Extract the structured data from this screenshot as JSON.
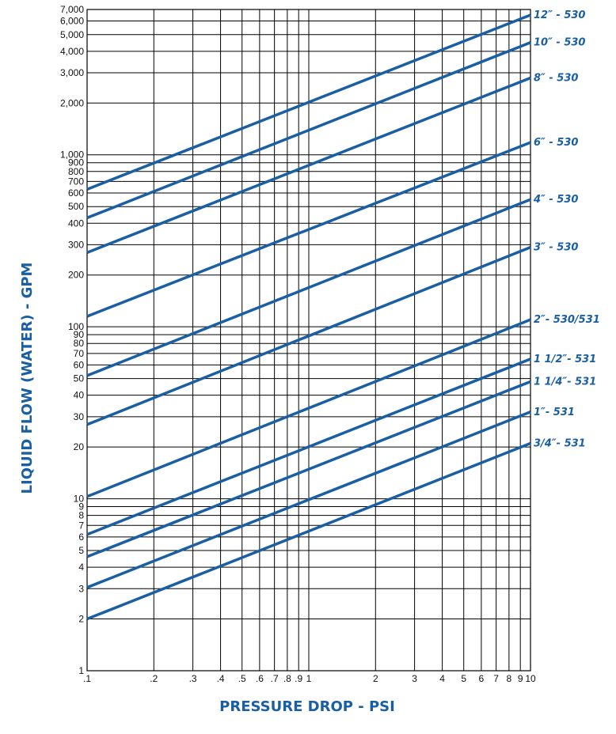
{
  "colors": {
    "series": "#1a5fa3",
    "grid": "#000000",
    "axis_title": "#1a5fa3"
  },
  "chart_data": {
    "type": "line",
    "xscale": "log",
    "yscale": "log",
    "xlim": [
      0.1,
      10
    ],
    "ylim": [
      1,
      7000
    ],
    "grid": true,
    "xlabel": "PRESSURE DROP - PSI",
    "ylabel": "LIQUID FLOW (WATER) - GPM",
    "x_ticks": [
      {
        "value": 0.1,
        "label": ".1"
      },
      {
        "value": 0.2,
        "label": ".2"
      },
      {
        "value": 0.3,
        "label": ".3"
      },
      {
        "value": 0.4,
        "label": ".4"
      },
      {
        "value": 0.5,
        "label": ".5"
      },
      {
        "value": 0.6,
        "label": ".6"
      },
      {
        "value": 0.7,
        "label": ".7"
      },
      {
        "value": 0.8,
        "label": ".8"
      },
      {
        "value": 0.9,
        "label": ".9"
      },
      {
        "value": 1,
        "label": "1"
      },
      {
        "value": 2,
        "label": "2"
      },
      {
        "value": 3,
        "label": "3"
      },
      {
        "value": 4,
        "label": "4"
      },
      {
        "value": 5,
        "label": "5"
      },
      {
        "value": 6,
        "label": "6"
      },
      {
        "value": 7,
        "label": "7"
      },
      {
        "value": 8,
        "label": "8"
      },
      {
        "value": 9,
        "label": "9"
      },
      {
        "value": 10,
        "label": "10"
      }
    ],
    "y_ticks": [
      {
        "value": 1,
        "label": "1"
      },
      {
        "value": 2,
        "label": "2"
      },
      {
        "value": 3,
        "label": "3"
      },
      {
        "value": 4,
        "label": "4"
      },
      {
        "value": 5,
        "label": "5"
      },
      {
        "value": 6,
        "label": "6"
      },
      {
        "value": 7,
        "label": "7"
      },
      {
        "value": 8,
        "label": "8"
      },
      {
        "value": 9,
        "label": "9"
      },
      {
        "value": 10,
        "label": "10"
      },
      {
        "value": 20,
        "label": "20"
      },
      {
        "value": 30,
        "label": "30"
      },
      {
        "value": 40,
        "label": "40"
      },
      {
        "value": 50,
        "label": "50"
      },
      {
        "value": 60,
        "label": "60"
      },
      {
        "value": 70,
        "label": "70"
      },
      {
        "value": 80,
        "label": "80"
      },
      {
        "value": 90,
        "label": "90"
      },
      {
        "value": 100,
        "label": "100"
      },
      {
        "value": 200,
        "label": "200"
      },
      {
        "value": 300,
        "label": "300"
      },
      {
        "value": 400,
        "label": "400"
      },
      {
        "value": 500,
        "label": "500"
      },
      {
        "value": 600,
        "label": "600"
      },
      {
        "value": 700,
        "label": "700"
      },
      {
        "value": 800,
        "label": "800"
      },
      {
        "value": 900,
        "label": "900"
      },
      {
        "value": 1000,
        "label": "1,000"
      },
      {
        "value": 2000,
        "label": "2,000"
      },
      {
        "value": 3000,
        "label": "3,000"
      },
      {
        "value": 4000,
        "label": "4,000"
      },
      {
        "value": 5000,
        "label": "5,000"
      },
      {
        "value": 6000,
        "label": "6,000"
      },
      {
        "value": 7000,
        "label": "7,000"
      }
    ],
    "series": [
      {
        "name": "12″ - 530",
        "x": [
          0.1,
          10
        ],
        "y": [
          630,
          6500
        ]
      },
      {
        "name": "10″ - 530",
        "x": [
          0.1,
          10
        ],
        "y": [
          430,
          4500
        ]
      },
      {
        "name": "8″ - 530",
        "x": [
          0.1,
          10
        ],
        "y": [
          270,
          2800
        ]
      },
      {
        "name": "6″ - 530",
        "x": [
          0.1,
          10
        ],
        "y": [
          115,
          1180
        ]
      },
      {
        "name": "4″ - 530",
        "x": [
          0.1,
          10
        ],
        "y": [
          52,
          550
        ]
      },
      {
        "name": "3″ - 530",
        "x": [
          0.1,
          10
        ],
        "y": [
          27,
          290
        ]
      },
      {
        "name": "2″- 530/531",
        "x": [
          0.1,
          10
        ],
        "y": [
          10.3,
          110
        ]
      },
      {
        "name": "1 1/2″- 531",
        "x": [
          0.1,
          10
        ],
        "y": [
          6.2,
          65
        ]
      },
      {
        "name": "1 1/4″- 531",
        "x": [
          0.1,
          10
        ],
        "y": [
          4.6,
          48
        ]
      },
      {
        "name": "1″- 531",
        "x": [
          0.1,
          10
        ],
        "y": [
          3.05,
          32
        ]
      },
      {
        "name": "3/4″- 531",
        "x": [
          0.1,
          10
        ],
        "y": [
          2.0,
          21
        ]
      }
    ]
  }
}
